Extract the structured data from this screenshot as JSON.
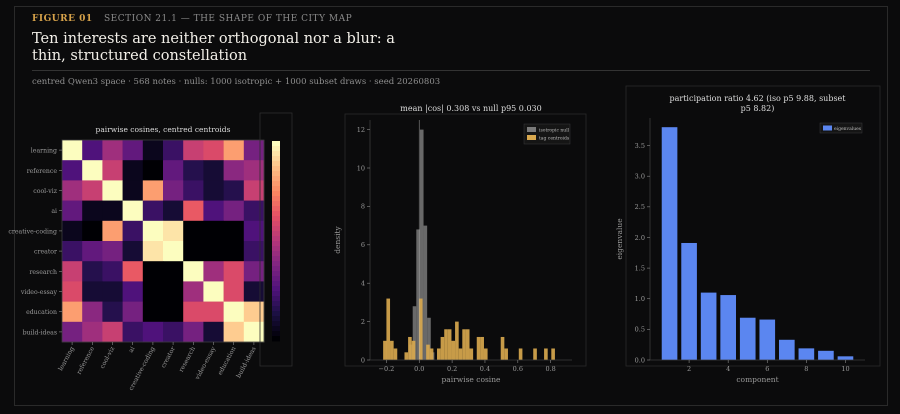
{
  "header": {
    "figure_number": "FIGURE 01",
    "section": "SECTION 21.1 — THE SHAPE OF THE CITY MAP",
    "title": "Ten interests are neither orthogonal nor a blur: a thin, structured constellation",
    "meta": "centred Qwen3 space · 568 notes · nulls: 1000 isotropic + 1000 subset draws · seed 20260803"
  },
  "colors": {
    "accent": "#d6a24a",
    "null_hist": "#7a7a7a",
    "tag_hist": "#d8a84e",
    "bars": "#5b86f0"
  },
  "chart_data": [
    {
      "type": "heatmap",
      "title": "pairwise cosines, centred centroids",
      "labels": [
        "learning",
        "reference",
        "cool-viz",
        "ai",
        "creative-coding",
        "creator",
        "research",
        "video-essay",
        "education",
        "build-ideas"
      ],
      "matrix": [
        [
          1.0,
          0.25,
          0.45,
          0.3,
          0.05,
          0.2,
          0.55,
          0.6,
          0.8,
          0.35
        ],
        [
          0.25,
          1.0,
          0.55,
          0.05,
          0.0,
          0.3,
          0.15,
          0.1,
          0.4,
          0.45
        ],
        [
          0.45,
          0.55,
          1.0,
          0.05,
          0.8,
          0.35,
          0.2,
          0.1,
          0.15,
          0.55
        ],
        [
          0.3,
          0.05,
          0.05,
          1.0,
          0.2,
          0.1,
          0.65,
          0.25,
          0.35,
          0.2
        ],
        [
          0.05,
          0.0,
          0.8,
          0.2,
          1.0,
          0.95,
          0.0,
          0.0,
          0.0,
          0.25
        ],
        [
          0.2,
          0.3,
          0.35,
          0.1,
          0.95,
          1.0,
          0.0,
          0.0,
          0.0,
          0.2
        ],
        [
          0.55,
          0.15,
          0.2,
          0.65,
          0.0,
          0.0,
          1.0,
          0.45,
          0.6,
          0.35
        ],
        [
          0.6,
          0.1,
          0.1,
          0.25,
          0.0,
          0.0,
          0.45,
          1.0,
          0.6,
          0.1
        ],
        [
          0.8,
          0.4,
          0.15,
          0.35,
          0.0,
          0.0,
          0.6,
          0.6,
          1.0,
          0.9
        ],
        [
          0.35,
          0.45,
          0.55,
          0.2,
          0.25,
          0.2,
          0.35,
          0.1,
          0.9,
          1.0
        ]
      ]
    },
    {
      "type": "histogram",
      "title": "mean |cos| 0.308 vs null p95 0.030",
      "xlabel": "pairwise cosine",
      "ylabel": "density",
      "xlim": [
        -0.3,
        0.93
      ],
      "ylim": [
        0,
        12.5
      ],
      "xticks": [
        -0.2,
        0.0,
        0.2,
        0.4,
        0.6,
        0.8
      ],
      "yticks": [
        0,
        2,
        4,
        6,
        8,
        10,
        12
      ],
      "bin_width": 0.022,
      "vline_x": 0.0,
      "series": [
        {
          "name": "isotropic null",
          "bins": [
            [
              -0.062,
              0.8
            ],
            [
              -0.04,
              2.8
            ],
            [
              -0.018,
              6.8
            ],
            [
              0.004,
              12.0
            ],
            [
              0.026,
              7.0
            ],
            [
              0.048,
              2.2
            ],
            [
              0.07,
              0.4
            ]
          ]
        },
        {
          "name": "tag centroids",
          "bins": [
            [
              -0.22,
              1.0
            ],
            [
              -0.2,
              3.2
            ],
            [
              -0.178,
              1.0
            ],
            [
              -0.156,
              0.6
            ],
            [
              -0.09,
              0.4
            ],
            [
              -0.068,
              1.2
            ],
            [
              -0.046,
              1.0
            ],
            [
              -0.002,
              3.2
            ],
            [
              0.042,
              0.8
            ],
            [
              0.064,
              0.6
            ],
            [
              0.108,
              0.6
            ],
            [
              0.13,
              1.2
            ],
            [
              0.152,
              1.6
            ],
            [
              0.174,
              1.6
            ],
            [
              0.196,
              1.0
            ],
            [
              0.218,
              2.0
            ],
            [
              0.24,
              0.6
            ],
            [
              0.262,
              1.6
            ],
            [
              0.284,
              1.6
            ],
            [
              0.306,
              0.6
            ],
            [
              0.35,
              1.2
            ],
            [
              0.372,
              1.2
            ],
            [
              0.394,
              0.6
            ],
            [
              0.496,
              1.2
            ],
            [
              0.518,
              0.6
            ],
            [
              0.606,
              0.6
            ],
            [
              0.694,
              0.6
            ],
            [
              0.76,
              0.6
            ],
            [
              0.804,
              0.6
            ]
          ]
        }
      ]
    },
    {
      "type": "bar",
      "title": "participation ratio 4.62 (iso p5 9.88, subset p5 8.82)",
      "xlabel": "component",
      "ylabel": "eigenvalue",
      "legend": "eigenvalues",
      "categories": [
        1,
        2,
        3,
        4,
        5,
        6,
        7,
        8,
        9,
        10
      ],
      "values": [
        3.8,
        1.91,
        1.1,
        1.06,
        0.69,
        0.66,
        0.33,
        0.19,
        0.15,
        0.06
      ],
      "xticks": [
        2,
        4,
        6,
        8,
        10
      ],
      "yticks": [
        0.0,
        0.5,
        1.0,
        1.5,
        2.0,
        2.5,
        3.0,
        3.5
      ],
      "ylim": [
        0,
        3.95
      ]
    }
  ]
}
